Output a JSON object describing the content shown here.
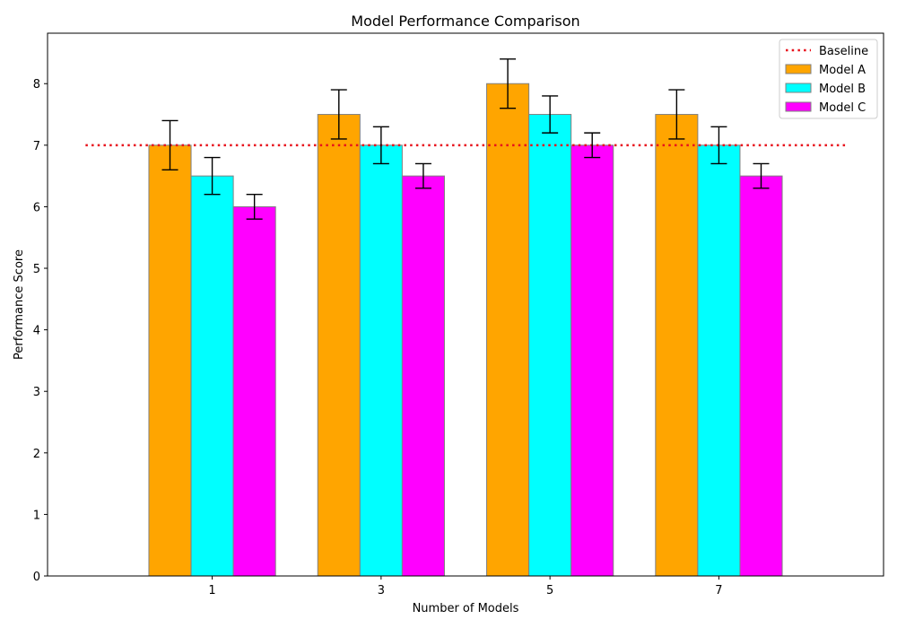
{
  "chart_data": {
    "type": "bar",
    "title": "Model Performance Comparison",
    "xlabel": "Number of Models",
    "ylabel": "Performance Score",
    "categories": [
      "1",
      "3",
      "5",
      "7"
    ],
    "x": [
      1,
      3,
      5,
      7
    ],
    "xlim": [
      -0.95,
      8.95
    ],
    "ylim": [
      0,
      8.82
    ],
    "yticks": [
      0,
      1,
      2,
      3,
      4,
      5,
      6,
      7,
      8
    ],
    "grid": false,
    "legend_position": "top-right",
    "series": [
      {
        "name": "Model A",
        "color": "#FFA500",
        "values": [
          7.0,
          7.5,
          8.0,
          7.5
        ],
        "errors": [
          0.4,
          0.4,
          0.4,
          0.4
        ]
      },
      {
        "name": "Model B",
        "color": "#00FFFF",
        "values": [
          6.5,
          7.0,
          7.5,
          7.0
        ],
        "errors": [
          0.3,
          0.3,
          0.3,
          0.3
        ]
      },
      {
        "name": "Model C",
        "color": "#FF00FF",
        "values": [
          6.0,
          6.5,
          7.0,
          6.5
        ],
        "errors": [
          0.2,
          0.2,
          0.2,
          0.2
        ]
      }
    ],
    "baseline": {
      "name": "Baseline",
      "value": 7,
      "color": "#E8121C",
      "style": "dotted"
    }
  }
}
